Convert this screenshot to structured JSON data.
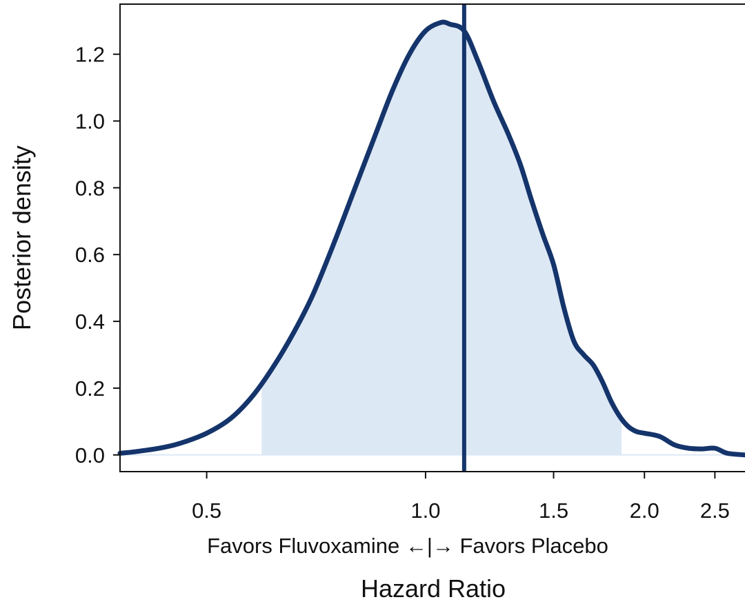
{
  "chart_data": {
    "type": "area",
    "xlabel": "Hazard Ratio",
    "ylabel": "Posterior density",
    "x_scale": "log",
    "xlim": [
      0.38,
      2.75
    ],
    "ylim": [
      -0.05,
      1.35
    ],
    "x_ticks": [
      0.5,
      1.0,
      1.5,
      2.0,
      2.5
    ],
    "x_tick_labels": [
      "0.5",
      "1.0",
      "1.5",
      "2.0",
      "2.5"
    ],
    "y_ticks": [
      0.0,
      0.2,
      0.4,
      0.6,
      0.8,
      1.0,
      1.2
    ],
    "y_tick_labels": [
      "0.0",
      "0.2",
      "0.4",
      "0.6",
      "0.8",
      "1.0",
      "1.2"
    ],
    "favors_label": "Favors Fluvoxamine ←|→ Favors Placebo",
    "vertical_line_x": 1.13,
    "credible_interval": [
      0.595,
      1.86
    ],
    "series": [
      {
        "x": [
          0.38,
          0.4,
          0.43,
          0.46,
          0.5,
          0.54,
          0.58,
          0.62,
          0.66,
          0.7,
          0.75,
          0.8,
          0.85,
          0.9,
          0.95,
          1.0,
          1.05,
          1.08,
          1.13,
          1.18,
          1.24,
          1.3,
          1.35,
          1.4,
          1.45,
          1.5,
          1.55,
          1.6,
          1.65,
          1.7,
          1.75,
          1.8,
          1.85,
          1.9,
          1.95,
          2.0,
          2.1,
          2.2,
          2.3,
          2.4,
          2.5,
          2.6,
          2.75
        ],
        "y": [
          0.005,
          0.01,
          0.02,
          0.035,
          0.065,
          0.11,
          0.18,
          0.27,
          0.37,
          0.48,
          0.64,
          0.8,
          0.95,
          1.09,
          1.2,
          1.27,
          1.295,
          1.29,
          1.27,
          1.18,
          1.06,
          0.96,
          0.87,
          0.76,
          0.66,
          0.57,
          0.44,
          0.34,
          0.3,
          0.27,
          0.22,
          0.16,
          0.115,
          0.085,
          0.07,
          0.065,
          0.055,
          0.03,
          0.02,
          0.018,
          0.02,
          0.005,
          0.0
        ]
      }
    ],
    "colors": {
      "curve": "#14346b",
      "fill": "#dde8f5",
      "vline": "#14346b",
      "axis": "#111111"
    }
  }
}
